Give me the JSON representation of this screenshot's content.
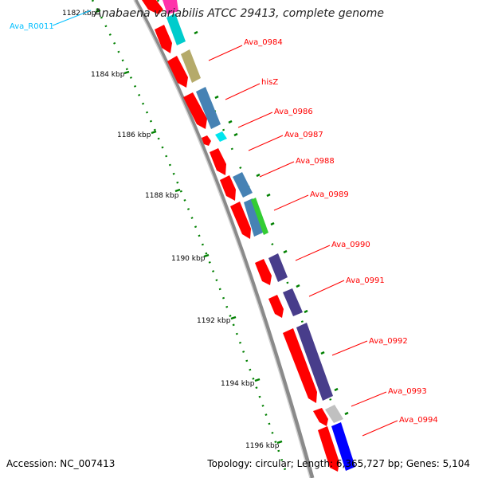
{
  "title": "Anabaena variabilis ATCC 29413, complete genome",
  "accession_text": "Accession: NC_007413",
  "topology_text": "Topology: circular; Length: 6,365,727 bp; Genes: 5,104",
  "colors": {
    "backbone": "#8a8a8a",
    "forward_gene": "#ff0000",
    "tick": "#008000",
    "gene_label": "#ff0000",
    "rna_label": "#00bfff"
  },
  "ruler": [
    {
      "label": "1182 kbp"
    },
    {
      "label": "1184 kbp"
    },
    {
      "label": "1186 kbp"
    },
    {
      "label": "1188 kbp"
    },
    {
      "label": "1190 kbp"
    },
    {
      "label": "1192 kbp"
    },
    {
      "label": "1194 kbp"
    },
    {
      "label": "1196 kbp"
    }
  ],
  "gene_labels": [
    {
      "text": "Ava_R0011",
      "type": "rna"
    },
    {
      "text": "Ava_0984",
      "type": "gene"
    },
    {
      "text": "hisZ",
      "type": "gene"
    },
    {
      "text": "Ava_0986",
      "type": "gene"
    },
    {
      "text": "Ava_0987",
      "type": "gene"
    },
    {
      "text": "Ava_0988",
      "type": "gene"
    },
    {
      "text": "Ava_0989",
      "type": "gene"
    },
    {
      "text": "Ava_0990",
      "type": "gene"
    },
    {
      "text": "Ava_0991",
      "type": "gene"
    },
    {
      "text": "Ava_0992",
      "type": "gene"
    },
    {
      "text": "Ava_0993",
      "type": "gene"
    },
    {
      "text": "Ava_0994",
      "type": "gene"
    }
  ]
}
